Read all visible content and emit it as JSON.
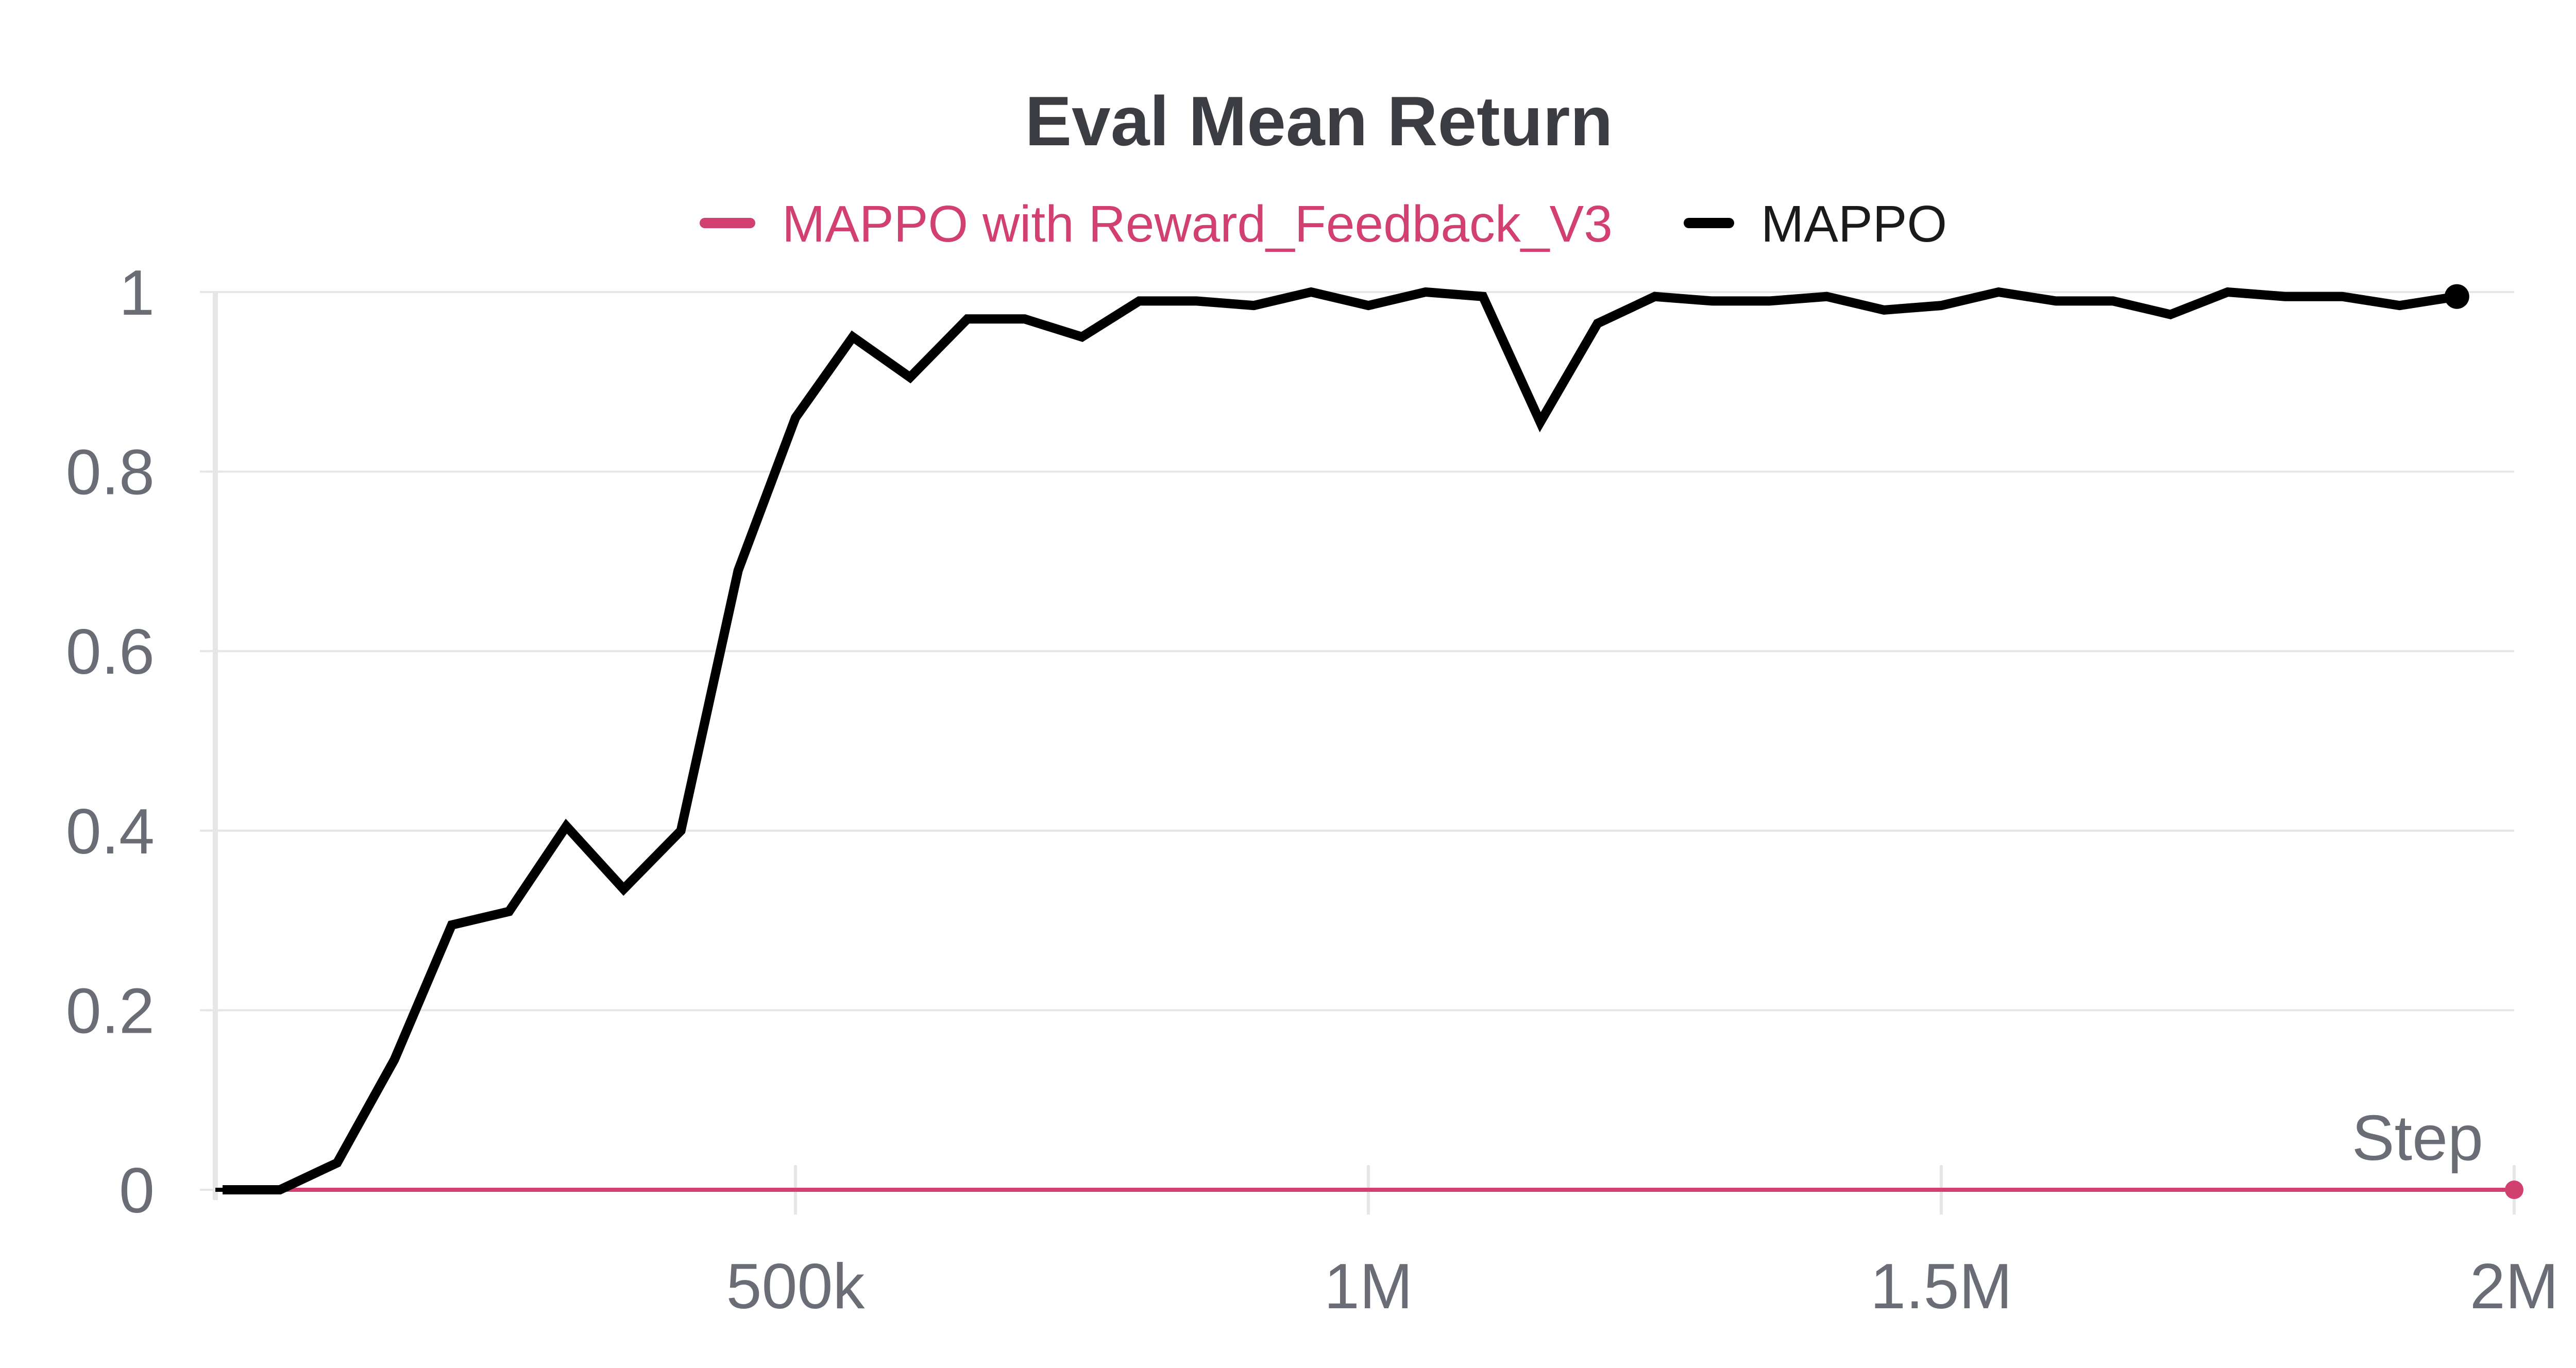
{
  "chart_data": {
    "type": "line",
    "title": "Eval Mean Return",
    "xlabel": "Step",
    "ylabel": "",
    "xlim": [
      0,
      2000000
    ],
    "ylim": [
      0,
      1
    ],
    "x_ticks": [
      {
        "value": 500000,
        "label": "500k"
      },
      {
        "value": 1000000,
        "label": "1M"
      },
      {
        "value": 1500000,
        "label": "1.5M"
      },
      {
        "value": 2000000,
        "label": "2M"
      }
    ],
    "y_ticks": [
      {
        "value": 0,
        "label": "0"
      },
      {
        "value": 0.2,
        "label": "0.2"
      },
      {
        "value": 0.4,
        "label": "0.4"
      },
      {
        "value": 0.6,
        "label": "0.6"
      },
      {
        "value": 0.8,
        "label": "0.8"
      },
      {
        "value": 1,
        "label": "1"
      }
    ],
    "grid": true,
    "legend_position": "top-center",
    "series": [
      {
        "name": "MAPPO with Reward_Feedback_V3",
        "color": "#d1406e",
        "end_marker": true,
        "x": [
          0,
          2000000
        ],
        "y": [
          0,
          0
        ]
      },
      {
        "name": "MAPPO",
        "color": "#000000",
        "end_marker": true,
        "x": [
          0,
          50000,
          100000,
          150000,
          200000,
          250000,
          300000,
          350000,
          400000,
          450000,
          500000,
          550000,
          600000,
          650000,
          700000,
          750000,
          800000,
          850000,
          900000,
          950000,
          1000000,
          1050000,
          1100000,
          1150000,
          1200000,
          1250000,
          1300000,
          1350000,
          1400000,
          1450000,
          1500000,
          1550000,
          1600000,
          1650000,
          1700000,
          1750000,
          1800000,
          1850000,
          1900000,
          1950000
        ],
        "y": [
          0,
          0,
          0.03,
          0.145,
          0.295,
          0.31,
          0.405,
          0.335,
          0.4,
          0.69,
          0.86,
          0.95,
          0.905,
          0.97,
          0.97,
          0.95,
          0.99,
          0.99,
          0.985,
          1.0,
          0.985,
          1.0,
          0.995,
          0.855,
          0.965,
          0.995,
          0.99,
          0.99,
          0.995,
          0.98,
          0.985,
          1.0,
          0.99,
          0.99,
          0.975,
          1.0,
          0.995,
          0.995,
          0.985,
          0.995
        ]
      }
    ]
  }
}
